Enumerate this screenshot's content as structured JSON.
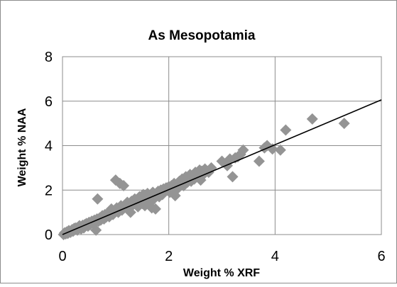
{
  "chart_data": {
    "type": "scatter",
    "title": "As Mesopotamia",
    "xlabel": "Weight % XRF",
    "ylabel": "Weight % NAA",
    "xlim": [
      0,
      6
    ],
    "ylim": [
      0,
      8
    ],
    "x_ticks": [
      "0",
      "2",
      "4",
      "6"
    ],
    "y_ticks": [
      "0",
      "2",
      "4",
      "6",
      "8"
    ],
    "grid": true,
    "legend": "none",
    "marker": "diamond",
    "colors": {
      "marker": "#949494",
      "trendline": "#000000",
      "grid": "#8c8c8c",
      "frame": "#8c8c8c"
    },
    "trendline": {
      "type": "linear",
      "slope": 1.01,
      "intercept": 0.0
    },
    "points": [
      [
        0.02,
        0.0
      ],
      [
        0.04,
        0.08
      ],
      [
        0.06,
        0.03
      ],
      [
        0.08,
        0.12
      ],
      [
        0.1,
        0.05
      ],
      [
        0.12,
        0.18
      ],
      [
        0.15,
        0.1
      ],
      [
        0.18,
        0.22
      ],
      [
        0.2,
        0.15
      ],
      [
        0.22,
        0.28
      ],
      [
        0.25,
        0.3
      ],
      [
        0.28,
        0.2
      ],
      [
        0.3,
        0.35
      ],
      [
        0.32,
        0.4
      ],
      [
        0.35,
        0.25
      ],
      [
        0.38,
        0.42
      ],
      [
        0.4,
        0.3
      ],
      [
        0.42,
        0.45
      ],
      [
        0.45,
        0.5
      ],
      [
        0.48,
        0.38
      ],
      [
        0.5,
        0.55
      ],
      [
        0.52,
        0.45
      ],
      [
        0.55,
        0.6
      ],
      [
        0.58,
        0.5
      ],
      [
        0.6,
        0.65
      ],
      [
        0.62,
        0.55
      ],
      [
        0.63,
        0.2
      ],
      [
        0.65,
        0.7
      ],
      [
        0.66,
        1.6
      ],
      [
        0.68,
        0.6
      ],
      [
        0.7,
        0.75
      ],
      [
        0.72,
        0.65
      ],
      [
        0.75,
        0.85
      ],
      [
        0.78,
        0.7
      ],
      [
        0.8,
        0.9
      ],
      [
        0.82,
        0.78
      ],
      [
        0.85,
        0.95
      ],
      [
        0.88,
        0.8
      ],
      [
        0.9,
        1.0
      ],
      [
        0.92,
        1.15
      ],
      [
        0.95,
        0.9
      ],
      [
        0.98,
        1.05
      ],
      [
        1.0,
        2.45
      ],
      [
        1.02,
        1.2
      ],
      [
        1.05,
        1.0
      ],
      [
        1.08,
        2.3
      ],
      [
        1.1,
        1.3
      ],
      [
        1.12,
        1.1
      ],
      [
        1.15,
        2.2
      ],
      [
        1.18,
        1.35
      ],
      [
        1.2,
        1.2
      ],
      [
        1.22,
        1.45
      ],
      [
        1.25,
        1.3
      ],
      [
        1.28,
        1.0
      ],
      [
        1.3,
        1.5
      ],
      [
        1.33,
        1.35
      ],
      [
        1.36,
        1.6
      ],
      [
        1.4,
        1.45
      ],
      [
        1.42,
        1.25
      ],
      [
        1.45,
        1.7
      ],
      [
        1.48,
        1.55
      ],
      [
        1.5,
        1.4
      ],
      [
        1.52,
        1.8
      ],
      [
        1.55,
        1.3
      ],
      [
        1.58,
        1.65
      ],
      [
        1.6,
        1.85
      ],
      [
        1.62,
        1.5
      ],
      [
        1.65,
        1.75
      ],
      [
        1.68,
        1.2
      ],
      [
        1.7,
        1.9
      ],
      [
        1.72,
        1.6
      ],
      [
        1.75,
        1.15
      ],
      [
        1.78,
        1.85
      ],
      [
        1.8,
        1.95
      ],
      [
        1.82,
        1.7
      ],
      [
        1.85,
        2.0
      ],
      [
        1.88,
        1.8
      ],
      [
        1.9,
        2.05
      ],
      [
        1.92,
        1.95
      ],
      [
        1.95,
        2.1
      ],
      [
        1.98,
        2.0
      ],
      [
        2.0,
        2.15
      ],
      [
        2.02,
        1.9
      ],
      [
        2.05,
        2.2
      ],
      [
        2.08,
        2.05
      ],
      [
        2.1,
        2.3
      ],
      [
        2.12,
        1.75
      ],
      [
        2.15,
        2.25
      ],
      [
        2.18,
        2.1
      ],
      [
        2.2,
        2.4
      ],
      [
        2.22,
        2.3
      ],
      [
        2.25,
        2.5
      ],
      [
        2.28,
        2.2
      ],
      [
        2.3,
        2.45
      ],
      [
        2.32,
        2.6
      ],
      [
        2.35,
        2.35
      ],
      [
        2.38,
        2.55
      ],
      [
        2.4,
        2.7
      ],
      [
        2.42,
        2.4
      ],
      [
        2.45,
        2.65
      ],
      [
        2.48,
        2.5
      ],
      [
        2.5,
        2.8
      ],
      [
        2.52,
        2.6
      ],
      [
        2.55,
        2.75
      ],
      [
        2.58,
        2.9
      ],
      [
        2.6,
        2.45
      ],
      [
        2.62,
        2.85
      ],
      [
        2.65,
        2.7
      ],
      [
        2.68,
        2.95
      ],
      [
        2.75,
        2.8
      ],
      [
        2.8,
        3.0
      ],
      [
        3.0,
        3.3
      ],
      [
        3.1,
        3.1
      ],
      [
        3.15,
        3.4
      ],
      [
        3.2,
        2.6
      ],
      [
        3.25,
        3.45
      ],
      [
        3.3,
        3.5
      ],
      [
        3.35,
        3.6
      ],
      [
        3.4,
        3.8
      ],
      [
        3.7,
        3.3
      ],
      [
        3.8,
        3.9
      ],
      [
        3.85,
        4.0
      ],
      [
        3.95,
        3.85
      ],
      [
        4.1,
        3.8
      ],
      [
        4.2,
        4.7
      ],
      [
        4.7,
        5.2
      ],
      [
        5.3,
        5.0
      ]
    ]
  }
}
